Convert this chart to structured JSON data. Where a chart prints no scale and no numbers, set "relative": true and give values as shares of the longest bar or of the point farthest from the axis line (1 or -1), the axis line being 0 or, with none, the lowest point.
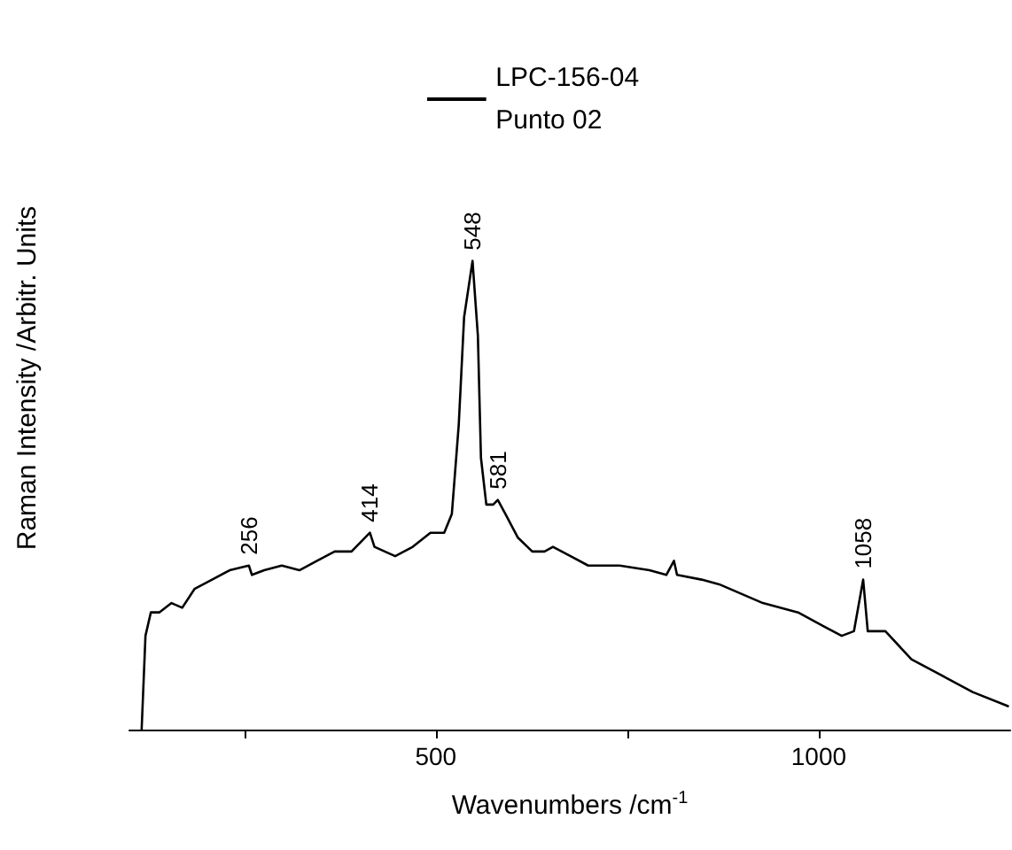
{
  "chart_data": {
    "type": "line",
    "relative": true,
    "xlabel": "Wavenumbers /cm$^{-1}$",
    "ylabel": "Raman Intensity /Arbitr. Units",
    "xlim": [
      100,
      1250
    ],
    "xticks": [
      {
        "value": 250,
        "label": null
      },
      500,
      {
        "value": 750,
        "label": null
      },
      1000
    ],
    "grid": false,
    "legend": "top",
    "marker": "none",
    "line_style": "solid",
    "tick_labels": "x",
    "series": [
      {
        "name": "LPC-156-04\nPunto 02",
        "color": "#000000",
        "x": [
          116,
          121,
          128,
          139,
          155,
          169,
          185,
          208,
          231,
          256,
          260,
          276,
          299,
          322,
          345,
          368,
          390,
          414,
          420,
          447,
          470,
          493,
          511,
          521,
          530,
          537,
          548,
          555,
          559,
          566,
          575,
          581,
          591,
          607,
          626,
          642,
          653,
          676,
          699,
          740,
          779,
          801,
          811,
          815,
          847,
          870,
          927,
          973,
          1007,
          1030,
          1046,
          1058,
          1064,
          1087,
          1121,
          1167,
          1201,
          1247
        ],
        "values": [
          0,
          0.2,
          0.25,
          0.25,
          0.27,
          0.26,
          0.3,
          0.32,
          0.34,
          0.35,
          0.33,
          0.34,
          0.35,
          0.34,
          0.36,
          0.38,
          0.38,
          0.42,
          0.39,
          0.37,
          0.39,
          0.42,
          0.42,
          0.46,
          0.65,
          0.88,
          1,
          0.84,
          0.58,
          0.48,
          0.48,
          0.49,
          0.46,
          0.41,
          0.38,
          0.38,
          0.39,
          0.37,
          0.35,
          0.35,
          0.34,
          0.33,
          0.36,
          0.33,
          0.32,
          0.31,
          0.27,
          0.25,
          0.22,
          0.2,
          0.21,
          0.32,
          0.21,
          0.21,
          0.15,
          0.11,
          0.08,
          0.05
        ]
      }
    ],
    "annotations": [
      {
        "text": "256",
        "x": 256,
        "y": 0.35
      },
      {
        "text": "414",
        "x": 414,
        "y": 0.42
      },
      {
        "text": "548",
        "x": 548,
        "y": 1
      },
      {
        "text": "581",
        "x": 581,
        "y": 0.49
      },
      {
        "text": "1058",
        "x": 1058,
        "y": 0.32
      }
    ]
  }
}
